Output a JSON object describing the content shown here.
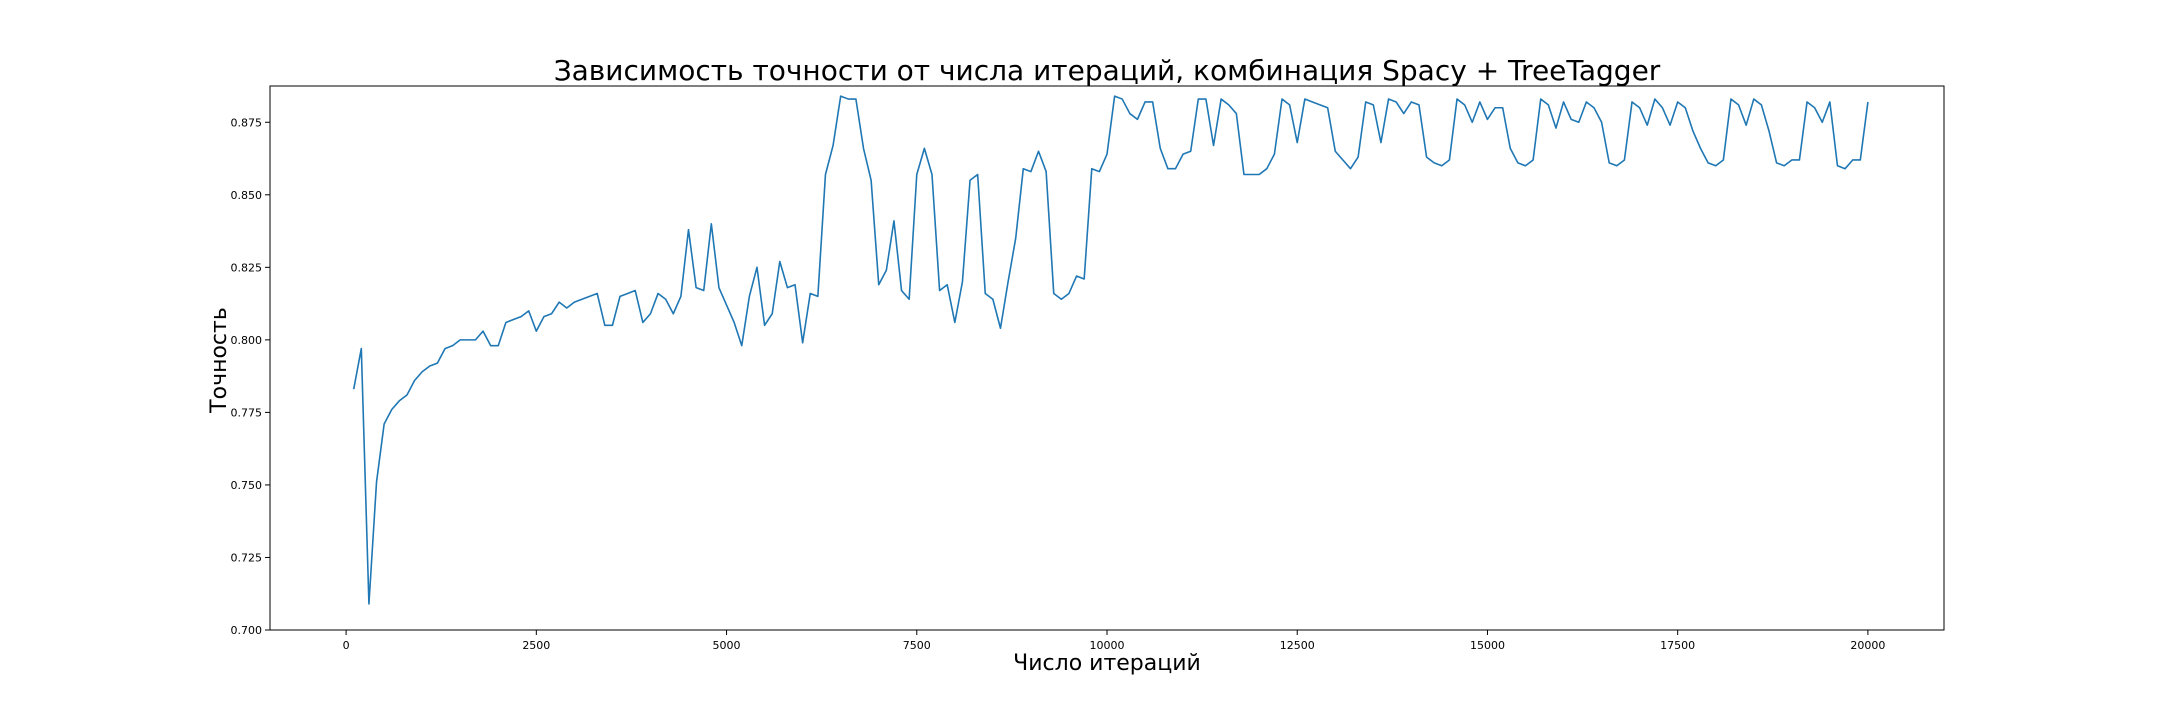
{
  "chart_data": {
    "type": "line",
    "title": "Зависимость точности от числа итераций, комбинация Spacy + TreeTagger",
    "xlabel": "Число итераций",
    "ylabel": "Точность",
    "xlim": [
      -1000,
      21000
    ],
    "ylim": [
      0.7,
      0.8875
    ],
    "xticks": [
      0,
      2500,
      5000,
      7500,
      10000,
      12500,
      15000,
      17500,
      20000
    ],
    "xtick_labels": [
      "0",
      "2500",
      "5000",
      "7500",
      "10000",
      "12500",
      "15000",
      "17500",
      "20000"
    ],
    "yticks": [
      0.7,
      0.725,
      0.75,
      0.775,
      0.8,
      0.825,
      0.85,
      0.875
    ],
    "ytick_labels": [
      "0.700",
      "0.725",
      "0.750",
      "0.775",
      "0.800",
      "0.825",
      "0.850",
      "0.875"
    ],
    "grid": false,
    "color": "#1f77b4",
    "series": [
      {
        "x": [
          100,
          200,
          300,
          400,
          500,
          600,
          700,
          800,
          900,
          1000,
          1100,
          1200,
          1300,
          1400,
          1500,
          1600,
          1700,
          1800,
          1900,
          2000,
          2100,
          2200,
          2300,
          2400,
          2500,
          2600,
          2700,
          2800,
          2900,
          3000,
          3100,
          3200,
          3300,
          3400,
          3500,
          3600,
          3700,
          3800,
          3900,
          4000,
          4100,
          4200,
          4300,
          4400,
          4500,
          4600,
          4700,
          4800,
          4900,
          5000,
          5100,
          5200,
          5300,
          5400,
          5500,
          5600,
          5700,
          5800,
          5900,
          6000,
          6100,
          6200,
          6300,
          6400,
          6500,
          6600,
          6700,
          6800,
          6900,
          7000,
          7100,
          7200,
          7300,
          7400,
          7500,
          7600,
          7700,
          7800,
          7900,
          8000,
          8100,
          8200,
          8300,
          8400,
          8500,
          8600,
          8700,
          8800,
          8900,
          9000,
          9100,
          9200,
          9300,
          9400,
          9500,
          9600,
          9700,
          9800,
          9900,
          10000,
          10100,
          10200,
          10300,
          10400,
          10500,
          10600,
          10700,
          10800,
          10900,
          11000,
          11100,
          11200,
          11300,
          11400,
          11500,
          11600,
          11700,
          11800,
          11900,
          12000,
          12100,
          12200,
          12300,
          12400,
          12500,
          12600,
          12700,
          12800,
          12900,
          13000,
          13100,
          13200,
          13300,
          13400,
          13500,
          13600,
          13700,
          13800,
          13900,
          14000,
          14100,
          14200,
          14300,
          14400,
          14500,
          14600,
          14700,
          14800,
          14900,
          15000,
          15100,
          15200,
          15300,
          15400,
          15500,
          15600,
          15700,
          15800,
          15900,
          16000,
          16100,
          16200,
          16300,
          16400,
          16500,
          16600,
          16700,
          16800,
          16900,
          17000,
          17100,
          17200,
          17300,
          17400,
          17500,
          17600,
          17700,
          17800,
          17900,
          18000,
          18100,
          18200,
          18300,
          18400,
          18500,
          18600,
          18700,
          18800,
          18900,
          19000,
          19100,
          19200,
          19300,
          19400,
          19500,
          19600,
          19700,
          19800,
          19900,
          20000
        ],
        "y": [
          0.783,
          0.797,
          0.709,
          0.751,
          0.771,
          0.776,
          0.779,
          0.781,
          0.786,
          0.789,
          0.791,
          0.792,
          0.797,
          0.798,
          0.8,
          0.8,
          0.8,
          0.803,
          0.798,
          0.798,
          0.806,
          0.807,
          0.808,
          0.81,
          0.803,
          0.808,
          0.809,
          0.813,
          0.811,
          0.813,
          0.814,
          0.815,
          0.816,
          0.805,
          0.805,
          0.815,
          0.816,
          0.817,
          0.806,
          0.809,
          0.816,
          0.814,
          0.809,
          0.815,
          0.838,
          0.818,
          0.817,
          0.84,
          0.818,
          0.812,
          0.806,
          0.798,
          0.815,
          0.825,
          0.805,
          0.809,
          0.827,
          0.818,
          0.819,
          0.799,
          0.816,
          0.815,
          0.857,
          0.867,
          0.884,
          0.883,
          0.883,
          0.866,
          0.855,
          0.819,
          0.824,
          0.841,
          0.817,
          0.814,
          0.857,
          0.866,
          0.857,
          0.817,
          0.819,
          0.806,
          0.82,
          0.855,
          0.857,
          0.816,
          0.814,
          0.804,
          0.82,
          0.835,
          0.859,
          0.858,
          0.865,
          0.858,
          0.816,
          0.814,
          0.816,
          0.822,
          0.821,
          0.859,
          0.858,
          0.864,
          0.884,
          0.883,
          0.878,
          0.876,
          0.882,
          0.882,
          0.866,
          0.859,
          0.859,
          0.864,
          0.865,
          0.883,
          0.883,
          0.867,
          0.883,
          0.881,
          0.878,
          0.857,
          0.857,
          0.857,
          0.859,
          0.864,
          0.883,
          0.881,
          0.868,
          0.883,
          0.882,
          0.881,
          0.88,
          0.865,
          0.862,
          0.859,
          0.863,
          0.882,
          0.881,
          0.868,
          0.883,
          0.882,
          0.878,
          0.882,
          0.881,
          0.863,
          0.861,
          0.86,
          0.862,
          0.883,
          0.881,
          0.875,
          0.882,
          0.876,
          0.88,
          0.88,
          0.866,
          0.861,
          0.86,
          0.862,
          0.883,
          0.881,
          0.873,
          0.882,
          0.876,
          0.875,
          0.882,
          0.88,
          0.875,
          0.861,
          0.86,
          0.862,
          0.882,
          0.88,
          0.874,
          0.883,
          0.88,
          0.874,
          0.882,
          0.88,
          0.872,
          0.866,
          0.861,
          0.86,
          0.862,
          0.883,
          0.881,
          0.874,
          0.883,
          0.881,
          0.872,
          0.861,
          0.86,
          0.862,
          0.862,
          0.882,
          0.88,
          0.875,
          0.882,
          0.86,
          0.859,
          0.862,
          0.862,
          0.882
        ]
      }
    ]
  }
}
